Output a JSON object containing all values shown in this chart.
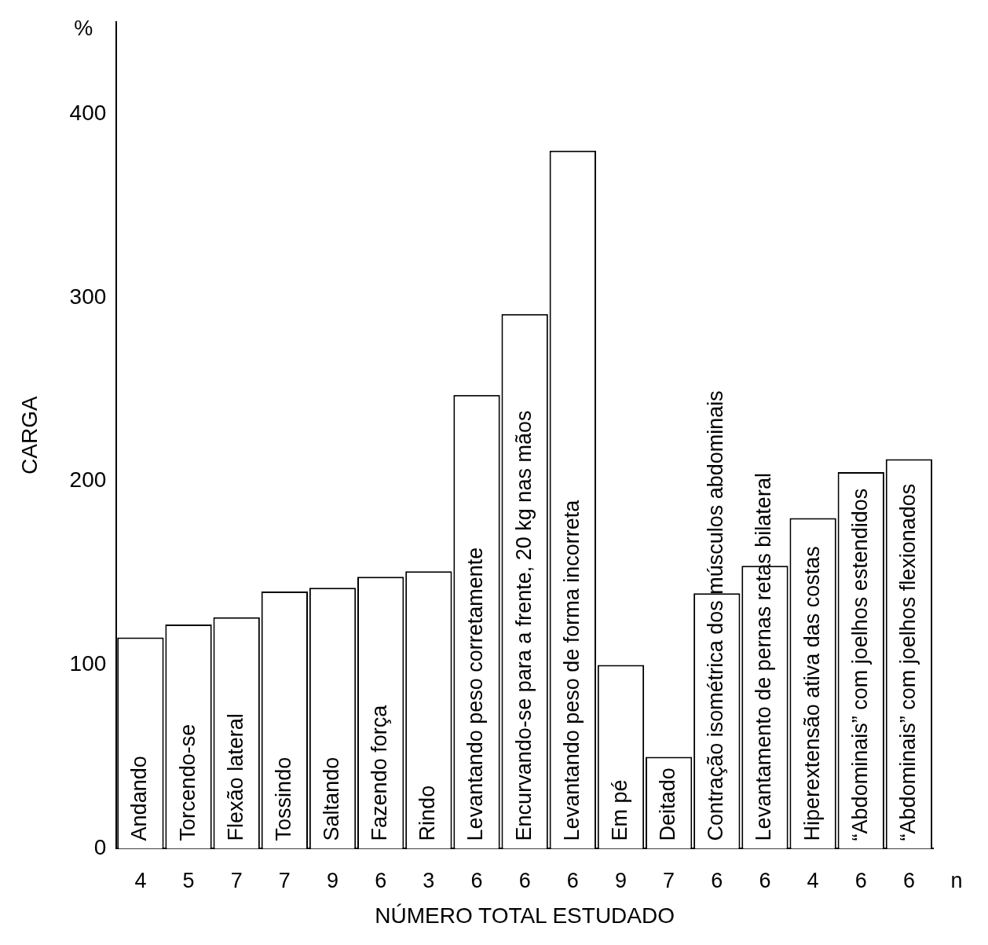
{
  "chart_data": {
    "type": "bar",
    "ylabel": "CARGA",
    "xlabel": "NÚMERO TOTAL ESTUDADO",
    "categories": [
      "Andando",
      "Torcendo-se",
      "Flexão lateral",
      "Tossindo",
      "Saltando",
      "Fazendo força",
      "Rindo",
      "Levantando peso corretamente",
      "Encurvando-se para a frente, 20 kg nas mãos",
      "Levantando peso de forma incorreta",
      "Em pé",
      "Deitado",
      "Contração isométrica dos músculos abdominais",
      "Levantamento de pernas retas bilateral",
      "Hiperextensão ativa das costas",
      "“Abdominais” com joelhos estendidos",
      "“Abdominais” com joelhos flexionados"
    ],
    "values": [
      115,
      122,
      126,
      140,
      142,
      148,
      151,
      247,
      291,
      380,
      100,
      50,
      139,
      154,
      180,
      205,
      212
    ],
    "color": "#ffffff",
    "ylim": [
      0,
      450
    ],
    "yticks": [
      0,
      100,
      200,
      300,
      400
    ],
    "grid": false,
    "legend": false,
    "annotations": [
      "%",
      "n",
      "4",
      "5",
      "7",
      "7",
      "9",
      "6",
      "3",
      "6",
      "6",
      "6",
      "9",
      "7",
      "6",
      "6",
      "4",
      "6",
      "6"
    ]
  }
}
